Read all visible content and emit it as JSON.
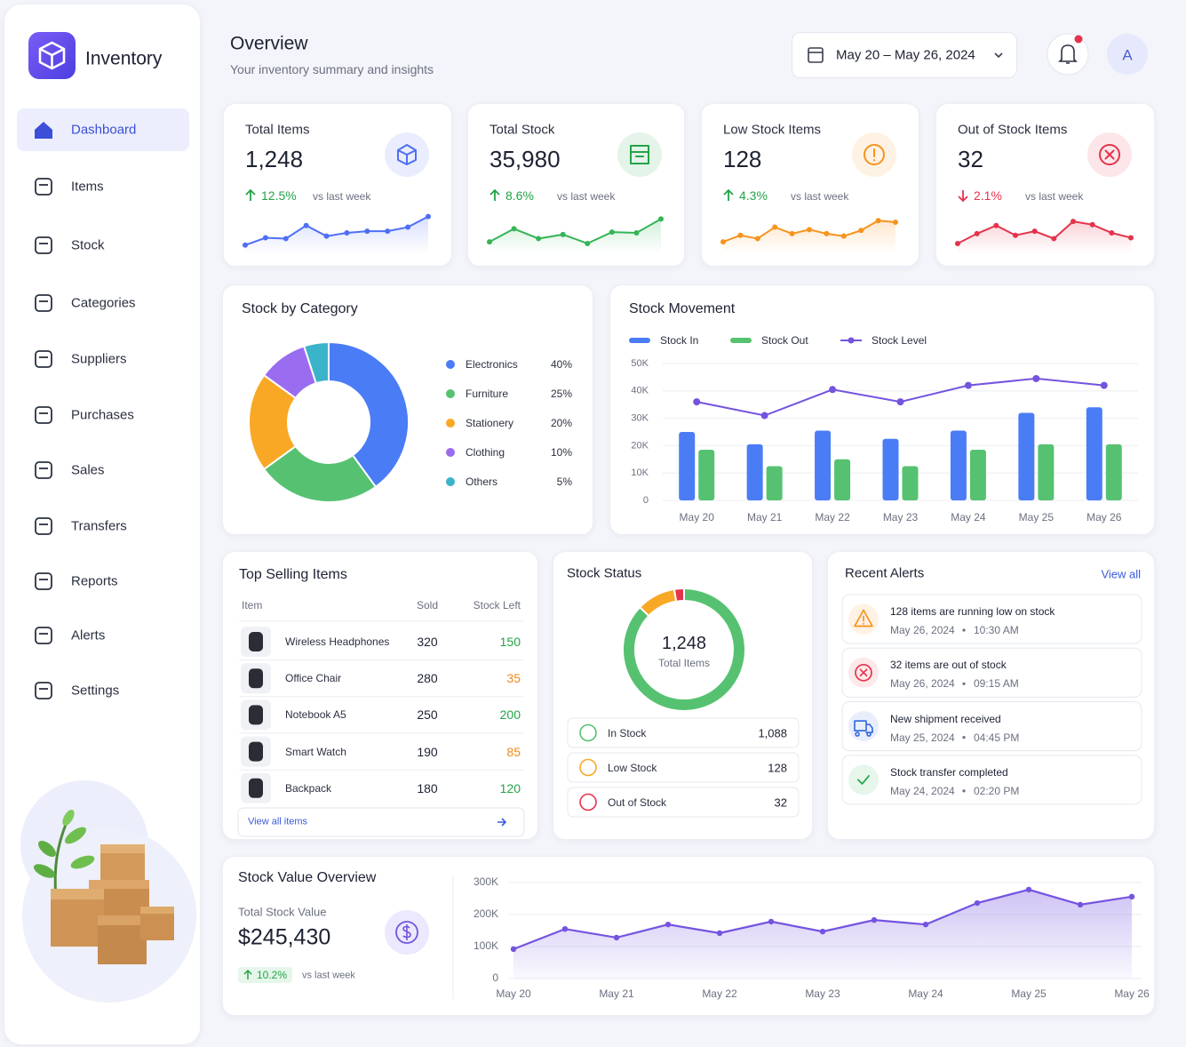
{
  "sidebar": {
    "brand": "Inventory",
    "nav": [
      "Dashboard",
      "Items",
      "Stock",
      "Categories",
      "Suppliers",
      "Purchases",
      "Sales",
      "Transfers",
      "Reports",
      "Alerts",
      "Settings"
    ],
    "active": "Dashboard"
  },
  "header": {
    "title": "Overview",
    "subtitle": "Your inventory summary and insights",
    "date_range": "May 20 – May 26, 2024",
    "avatar": "A"
  },
  "kpis": [
    {
      "label": "Total Items",
      "value": "1,248",
      "change": "12.5%",
      "direction": "up",
      "note": "vs last week",
      "color": "#4f6ef7",
      "change_color": "#22a447"
    },
    {
      "label": "Total Stock",
      "value": "35,980",
      "change": "8.6%",
      "direction": "up",
      "note": "vs last week",
      "color": "#22a447",
      "change_color": "#22a447"
    },
    {
      "label": "Low Stock Items",
      "value": "128",
      "change": "4.3%",
      "direction": "up",
      "note": "vs last week",
      "color": "#f7931e",
      "change_color": "#22a447"
    },
    {
      "label": "Out of Stock Items",
      "value": "32",
      "change": "2.1%",
      "direction": "down",
      "note": "vs last week",
      "color": "#e5334b",
      "change_color": "#e5334b"
    }
  ],
  "top_selling": {
    "title": "Top Selling Items",
    "columns": [
      "Item",
      "Sold",
      "Stock Left"
    ],
    "rows": [
      {
        "item": "Wireless Headphones",
        "sold": "320",
        "stock_left": "150",
        "color": "#22a447"
      },
      {
        "item": "Office Chair",
        "sold": "280",
        "stock_left": "35",
        "color": "#f08a1c"
      },
      {
        "item": "Notebook A5",
        "sold": "250",
        "stock_left": "200",
        "color": "#22a447"
      },
      {
        "item": "Smart Watch",
        "sold": "190",
        "stock_left": "85",
        "color": "#f08a1c"
      },
      {
        "item": "Backpack",
        "sold": "180",
        "stock_left": "120",
        "color": "#22a447"
      }
    ],
    "link": "View all items"
  },
  "alerts": {
    "title": "Recent Alerts",
    "link": "View all",
    "items": [
      {
        "text": "128 items are running low on stock",
        "date": "May 26, 2024",
        "time": "10:30 AM"
      },
      {
        "text": "32 items are out of stock",
        "date": "May 26, 2024",
        "time": "09:15 AM"
      },
      {
        "text": "New shipment received",
        "date": "May 25, 2024",
        "time": "04:45 PM"
      },
      {
        "text": "Stock transfer completed",
        "date": "May 24, 2024",
        "time": "02:20 PM"
      }
    ]
  },
  "stock_value": {
    "label": "Total Stock Value",
    "value": "$245,430",
    "change": "10.2%",
    "direction": "up",
    "note": "vs last week"
  },
  "chart_data": [
    {
      "type": "line",
      "values": [
        10,
        19,
        18,
        34,
        21,
        25,
        27,
        27,
        32,
        45
      ],
      "color": "#4f6ef7",
      "ylim": [
        0,
        50
      ]
    },
    {
      "type": "line",
      "values": [
        14,
        30,
        18,
        23,
        12,
        26,
        25,
        42
      ],
      "color": "#34b556",
      "ylim": [
        0,
        50
      ]
    },
    {
      "type": "line",
      "values": [
        14,
        22,
        18,
        32,
        24,
        29,
        24,
        21,
        28,
        40,
        38
      ],
      "color": "#f7931e",
      "ylim": [
        0,
        50
      ]
    },
    {
      "type": "line",
      "values": [
        12,
        24,
        34,
        22,
        27,
        18,
        39,
        35,
        25,
        19
      ],
      "color": "#e5334b",
      "ylim": [
        0,
        50
      ]
    },
    {
      "type": "pie",
      "title": "Stock by Category",
      "categories": [
        "Electronics",
        "Furniture",
        "Stationery",
        "Clothing",
        "Others"
      ],
      "values": [
        40,
        25,
        20,
        10,
        5
      ],
      "value_labels": [
        "40%",
        "25%",
        "20%",
        "10%",
        "5%"
      ],
      "colors": [
        "#4a7cf6",
        "#56c271",
        "#f9a826",
        "#9a6cf0",
        "#3bb3c9"
      ]
    },
    {
      "type": "bar",
      "title": "Stock Movement",
      "categories": [
        "May 20",
        "May 21",
        "May 22",
        "May 23",
        "May 24",
        "May 25",
        "May 26"
      ],
      "series": [
        {
          "name": "Stock In",
          "type": "bar",
          "color": "#4a7cf6",
          "values": [
            25000,
            20500,
            25500,
            22500,
            25500,
            32000,
            34000
          ]
        },
        {
          "name": "Stock Out",
          "type": "bar",
          "color": "#56c271",
          "values": [
            18500,
            12500,
            15000,
            12500,
            18500,
            20500,
            20500
          ]
        },
        {
          "name": "Stock Level",
          "type": "line",
          "color": "#7453e0",
          "values": [
            36000,
            31000,
            40500,
            36000,
            42000,
            44500,
            42000
          ]
        }
      ],
      "ylim": [
        0,
        50000
      ],
      "yticks": [
        0,
        {
          "value": 10000,
          "label": "10K"
        },
        {
          "value": 20000,
          "label": "20K"
        },
        {
          "value": 30000,
          "label": "30K"
        },
        {
          "value": 40000,
          "label": "40K"
        },
        {
          "value": 50000,
          "label": "50K"
        }
      ],
      "grid": true
    },
    {
      "type": "pie",
      "title": "Stock Status",
      "center_value": "1,248",
      "center_label": "Total Items",
      "categories": [
        "In Stock",
        "Low Stock",
        "Out of Stock"
      ],
      "values": [
        1088,
        128,
        32
      ],
      "value_labels": [
        "1,088",
        "128",
        "32"
      ],
      "colors": [
        "#56c271",
        "#f9a826",
        "#e5334b"
      ]
    },
    {
      "type": "area",
      "title": "Stock Value Overview",
      "categories": [
        "May 20",
        null,
        "May 21",
        null,
        "May 22",
        null,
        "May 23",
        null,
        "May 24",
        null,
        "May 25",
        null,
        "May 26"
      ],
      "values": [
        92000,
        155000,
        128000,
        169000,
        142000,
        178000,
        147000,
        183000,
        169000,
        236000,
        278000,
        231000,
        256000
      ],
      "color": "#7453e0",
      "ylim": [
        0,
        300000
      ],
      "yticks": [
        0,
        {
          "value": 100000,
          "label": "100K"
        },
        {
          "value": 200000,
          "label": "200K"
        },
        {
          "value": 300000,
          "label": "300K"
        }
      ],
      "grid": true
    }
  ]
}
